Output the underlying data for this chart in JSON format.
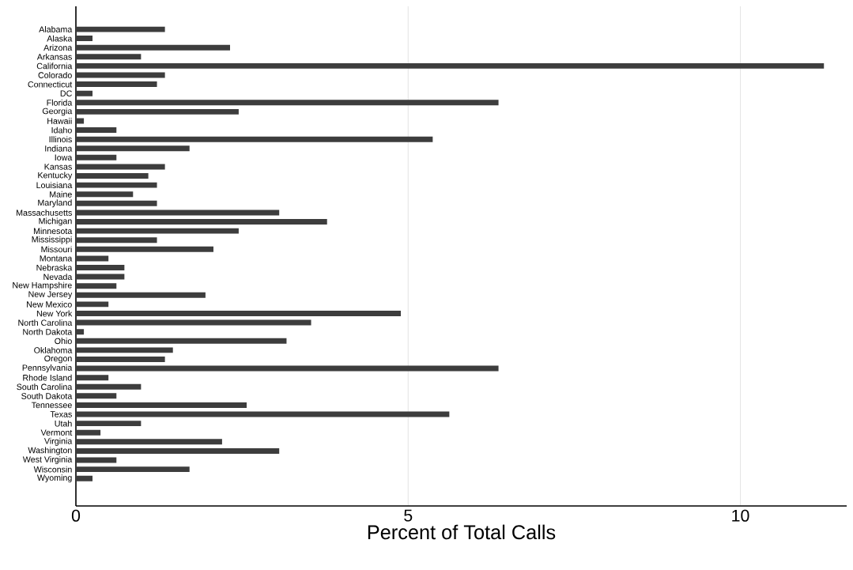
{
  "chart_data": {
    "type": "bar",
    "orientation": "horizontal",
    "xlabel": "Percent of Total Calls",
    "categories": [
      "Alabama",
      "Alaska",
      "Arizona",
      "Arkansas",
      "California",
      "Colorado",
      "Connecticut",
      "DC",
      "Florida",
      "Georgia",
      "Hawaii",
      "Idaho",
      "Illinois",
      "Indiana",
      "Iowa",
      "Kansas",
      "Kentucky",
      "Louisiana",
      "Maine",
      "Maryland",
      "Massachusetts",
      "Michigan",
      "Minnesota",
      "Mississippi",
      "Missouri",
      "Montana",
      "Nebraska",
      "Nevada",
      "New Hampshire",
      "New Jersey",
      "New Mexico",
      "New York",
      "North Carolina",
      "North Dakota",
      "Ohio",
      "Oklahoma",
      "Oregon",
      "Pennsylvania",
      "Rhode Island",
      "South Carolina",
      "South Dakota",
      "Tennessee",
      "Texas",
      "Utah",
      "Vermont",
      "Virginia",
      "Washington",
      "West Virginia",
      "Wisconsin",
      "Wyoming"
    ],
    "values": [
      1.34,
      0.25,
      2.32,
      0.98,
      11.26,
      1.34,
      1.22,
      0.25,
      6.36,
      2.45,
      0.12,
      0.61,
      5.37,
      1.71,
      0.61,
      1.34,
      1.09,
      1.22,
      0.86,
      1.22,
      3.06,
      3.78,
      2.45,
      1.22,
      2.07,
      0.49,
      0.73,
      0.73,
      0.61,
      1.95,
      0.49,
      4.89,
      3.54,
      0.12,
      3.17,
      1.46,
      1.34,
      6.36,
      0.49,
      0.98,
      0.61,
      2.57,
      5.62,
      0.98,
      0.37,
      2.2,
      3.06,
      0.61,
      1.71,
      0.25
    ],
    "color": "#3d3d3d",
    "xlim": [
      0,
      11.6
    ],
    "xticks": [
      0,
      5,
      10
    ],
    "grid": "x"
  }
}
